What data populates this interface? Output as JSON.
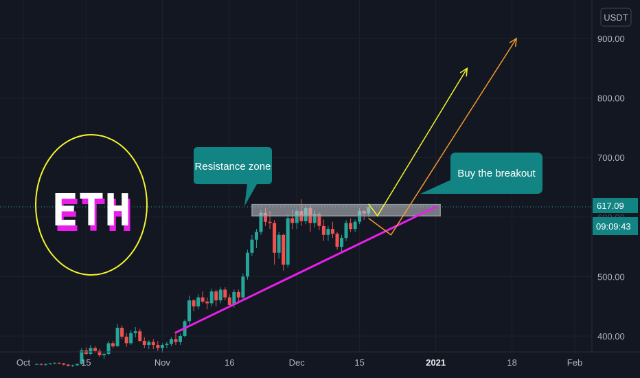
{
  "chart_data": {
    "type": "candlestick",
    "symbol_logo": "ETH",
    "currency": "USDT",
    "y_ticks": [
      400,
      500,
      700,
      800,
      900
    ],
    "y_tick_labels": [
      "400.00",
      "500.00",
      "700.00",
      "800.00",
      "900.00"
    ],
    "price_badge": "617.09",
    "countdown_badge": "09:09:43",
    "hidden_tick_label": "600.00",
    "x_ticks": [
      {
        "date": "2020-10-01",
        "label": "Oct",
        "bold": false
      },
      {
        "date": "2020-10-15",
        "label": "15",
        "bold": false
      },
      {
        "date": "2020-11-01",
        "label": "Nov",
        "bold": false
      },
      {
        "date": "2020-11-16",
        "label": "16",
        "bold": false
      },
      {
        "date": "2020-12-01",
        "label": "Dec",
        "bold": false
      },
      {
        "date": "2020-12-15",
        "label": "15",
        "bold": false
      },
      {
        "date": "2021-01-01",
        "label": "2021",
        "bold": true
      },
      {
        "date": "2021-01-18",
        "label": "18",
        "bold": false
      },
      {
        "date": "2021-02-01",
        "label": "Feb",
        "bold": false
      }
    ],
    "candles_start_date": "2020-10-04",
    "candles": [
      [
        353,
        354,
        352,
        353
      ],
      [
        353,
        354,
        351,
        352
      ],
      [
        352,
        354,
        350,
        353
      ],
      [
        353,
        355,
        352,
        354
      ],
      [
        354,
        356,
        353,
        355
      ],
      [
        355,
        356,
        353,
        354
      ],
      [
        354,
        355,
        351,
        352
      ],
      [
        352,
        353,
        349,
        350
      ],
      [
        350,
        352,
        348,
        351
      ],
      [
        351,
        354,
        350,
        353
      ],
      [
        353,
        380,
        352,
        376
      ],
      [
        376,
        381,
        368,
        370
      ],
      [
        370,
        385,
        368,
        380
      ],
      [
        380,
        383,
        372,
        375
      ],
      [
        375,
        378,
        365,
        368
      ],
      [
        368,
        372,
        362,
        370
      ],
      [
        370,
        392,
        368,
        388
      ],
      [
        388,
        392,
        380,
        383
      ],
      [
        383,
        420,
        382,
        414
      ],
      [
        414,
        418,
        395,
        399
      ],
      [
        399,
        405,
        382,
        388
      ],
      [
        388,
        410,
        385,
        405
      ],
      [
        405,
        415,
        398,
        408
      ],
      [
        408,
        412,
        390,
        392
      ],
      [
        392,
        398,
        380,
        385
      ],
      [
        385,
        393,
        378,
        390
      ],
      [
        390,
        395,
        378,
        385
      ],
      [
        385,
        392,
        375,
        380
      ],
      [
        380,
        388,
        372,
        385
      ],
      [
        385,
        390,
        380,
        387
      ],
      [
        387,
        398,
        383,
        395
      ],
      [
        395,
        405,
        385,
        390
      ],
      [
        390,
        404,
        385,
        400
      ],
      [
        400,
        428,
        398,
        425
      ],
      [
        425,
        468,
        420,
        460
      ],
      [
        460,
        462,
        442,
        450
      ],
      [
        450,
        470,
        445,
        465
      ],
      [
        465,
        475,
        455,
        458
      ],
      [
        458,
        465,
        445,
        455
      ],
      [
        455,
        480,
        450,
        475
      ],
      [
        475,
        478,
        450,
        460
      ],
      [
        460,
        482,
        455,
        478
      ],
      [
        478,
        482,
        460,
        465
      ],
      [
        465,
        470,
        448,
        452
      ],
      [
        452,
        478,
        448,
        474
      ],
      [
        474,
        478,
        455,
        465
      ],
      [
        465,
        505,
        462,
        500
      ],
      [
        500,
        545,
        495,
        540
      ],
      [
        540,
        570,
        535,
        562
      ],
      [
        562,
        580,
        548,
        575
      ],
      [
        575,
        612,
        570,
        607
      ],
      [
        607,
        615,
        585,
        592
      ],
      [
        592,
        610,
        580,
        590
      ],
      [
        590,
        595,
        520,
        540
      ],
      [
        540,
        575,
        530,
        570
      ],
      [
        570,
        572,
        510,
        520
      ],
      [
        520,
        605,
        515,
        598
      ],
      [
        598,
        612,
        580,
        590
      ],
      [
        590,
        614,
        580,
        610
      ],
      [
        610,
        630,
        585,
        593
      ],
      [
        593,
        618,
        588,
        615
      ],
      [
        615,
        620,
        575,
        590
      ],
      [
        590,
        612,
        582,
        605
      ],
      [
        605,
        608,
        578,
        585
      ],
      [
        585,
        596,
        560,
        570
      ],
      [
        570,
        585,
        560,
        580
      ],
      [
        580,
        592,
        565,
        572
      ],
      [
        572,
        575,
        545,
        550
      ],
      [
        550,
        570,
        540,
        565
      ],
      [
        565,
        595,
        560,
        590
      ],
      [
        590,
        598,
        575,
        580
      ],
      [
        580,
        596,
        575,
        592
      ],
      [
        592,
        615,
        588,
        610
      ],
      [
        610,
        612,
        595,
        606
      ],
      [
        606,
        618,
        600,
        617
      ]
    ],
    "annotations": [
      {
        "type": "rectangle",
        "label": "resistance-zone-box",
        "x_start": "2020-11-21",
        "x_end": "2021-01-02",
        "y_bottom": 602,
        "y_top": 621
      },
      {
        "type": "trendline",
        "label": "support-trendline",
        "points": [
          [
            "2020-11-04",
            406
          ],
          [
            "2021-01-01",
            617
          ]
        ]
      },
      {
        "type": "arrow",
        "label": "yellow-projection",
        "points": [
          [
            "2020-12-17",
            622
          ],
          [
            "2020-12-19",
            602
          ],
          [
            "2021-01-08",
            850
          ]
        ]
      },
      {
        "type": "arrow",
        "label": "orange-projection",
        "points": [
          [
            "2020-12-17",
            598
          ],
          [
            "2020-12-22",
            570
          ],
          [
            "2021-01-19",
            900
          ]
        ]
      }
    ],
    "callouts": [
      {
        "text": "Resistance zone"
      },
      {
        "text": "Buy the breakout"
      }
    ],
    "colors": {
      "background": "#131722",
      "up": "#26a69a",
      "down": "#ef5350",
      "trendline": "#e91fe9",
      "yellow_arrow": "#f5f52c",
      "orange_arrow": "#f59a2c",
      "callout_fill": "#138484",
      "eth_text": "#ffffff",
      "eth_shadow": "#e91fe9",
      "circle": "#f5f52c"
    }
  }
}
